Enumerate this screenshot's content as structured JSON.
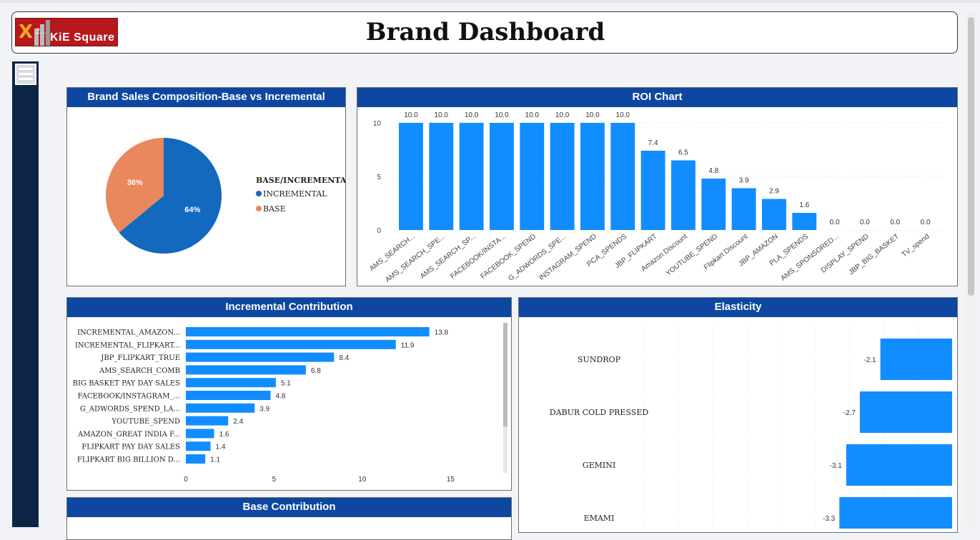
{
  "header": {
    "title": "Brand Dashboard",
    "logo_text": "KiE Square",
    "logo_small": "2..."
  },
  "colors": {
    "blue": "#118dff",
    "orange": "#e8885c",
    "pie_blue": "#1369bd",
    "header_blue": "#0e47a1"
  },
  "pie_panel": {
    "title": "Brand Sales Composition-Base vs Incremental",
    "legend_title": "BASE/INCREMENTAL",
    "slices": [
      {
        "label": "INCREMENTAL",
        "value": 64,
        "text": "64%"
      },
      {
        "label": "BASE",
        "value": 36,
        "text": "36%"
      }
    ]
  },
  "roi_panel": {
    "title": "ROI Chart",
    "chart_data": {
      "type": "bar",
      "categories": [
        "AMS_SEARCH...",
        "AMS_SEARCH_SPE...",
        "AMS_SEARCH_SP...",
        "FACEBOOK/INSTA...",
        "FACEBOOK_SPEND",
        "G_ADWORDS_SPE...",
        "INSTAGRAM_SPEND",
        "PCA_SPENDS",
        "JBP_FLIPKART",
        "Amazon Discount",
        "YOUTUBE_SPEND",
        "Flipkart Discount",
        "JBP_AMAZON",
        "PLA_SPENDS",
        "AMS_SPONSORED...",
        "DISPLAY_SPEND",
        "JBP_BIG_BASKET",
        "TV_spend"
      ],
      "values": [
        10.0,
        10.0,
        10.0,
        10.0,
        10.0,
        10.0,
        10.0,
        10.0,
        7.4,
        6.5,
        4.8,
        3.9,
        2.9,
        1.6,
        0.0,
        0.0,
        0.0,
        0.0
      ],
      "labels": [
        "10.0",
        "10.0",
        "10.0",
        "10.0",
        "10.0",
        "10.0",
        "10.0",
        "10.0",
        "7.4",
        "6.5",
        "4.8",
        "3.9",
        "2.9",
        "1.6",
        "0.0",
        "0.0",
        "0.0",
        "0.0"
      ],
      "yticks": [
        "0",
        "5",
        "10"
      ],
      "ylim": [
        0,
        10
      ]
    }
  },
  "incremental_panel": {
    "title": "Incremental Contribution",
    "chart_data": {
      "type": "bar",
      "orientation": "horizontal",
      "categories": [
        "INCREMENTAL_AMAZON...",
        "INCREMENTAL_FLIPKART...",
        "JBP_FLIPKART_TRUE",
        "AMS_SEARCH_COMB",
        "BIG BASKET PAY DAY SALES",
        "FACEBOOK/INSTAGRAM_...",
        "G_ADWORDS_SPEND_LA...",
        "YOUTUBE_SPEND",
        "AMAZON_GREAT INDIA F...",
        "FLIPKART PAY DAY SALES",
        "FLIPKART BIG BILLION D..."
      ],
      "values": [
        13.8,
        11.9,
        8.4,
        6.8,
        5.1,
        4.8,
        3.9,
        2.4,
        1.6,
        1.4,
        1.1
      ],
      "labels": [
        "13.8",
        "11.9",
        "8.4",
        "6.8",
        "5.1",
        "4.8",
        "3.9",
        "2.4",
        "1.6",
        "1.4",
        "1.1"
      ],
      "xticks": [
        "0",
        "5",
        "10",
        "15"
      ],
      "xlim": [
        0,
        17.5
      ]
    }
  },
  "elasticity_panel": {
    "title": "Elasticity",
    "chart_data": {
      "type": "bar",
      "orientation": "horizontal",
      "categories": [
        "SUNDROP",
        "DABUR COLD PRESSED",
        "GEMINI",
        "EMAMI"
      ],
      "values": [
        -2.1,
        -2.7,
        -3.1,
        -3.3
      ],
      "labels": [
        "-2.1",
        "-2.7",
        "-3.1",
        "-3.3"
      ]
    }
  },
  "base_panel": {
    "title": "Base Contribution"
  }
}
